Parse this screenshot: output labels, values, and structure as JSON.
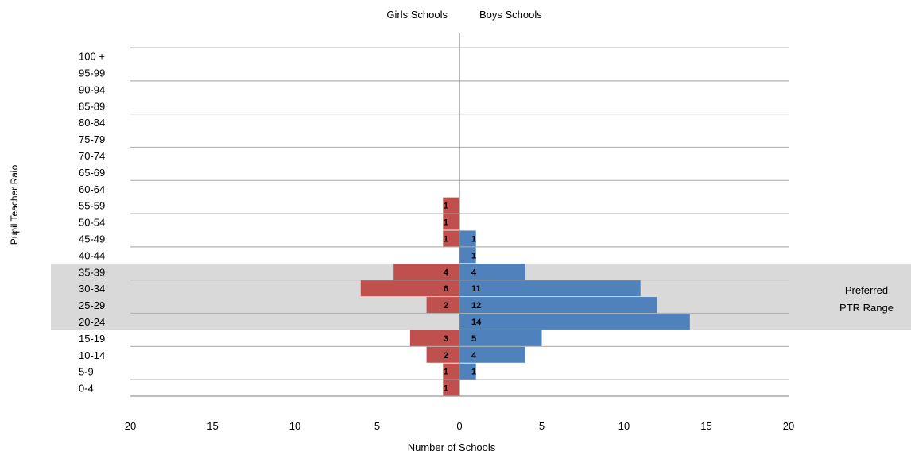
{
  "chart_data": {
    "type": "bar",
    "orientation": "horizontal-population-pyramid",
    "categories": [
      "0-4",
      "5-9",
      "10-14",
      "15-19",
      "20-24",
      "25-29",
      "30-34",
      "35-39",
      "40-44",
      "45-49",
      "50-54",
      "55-59",
      "60-64",
      "65-69",
      "70-74",
      "75-79",
      "80-84",
      "85-89",
      "90-94",
      "95-99",
      "100 +"
    ],
    "series": [
      {
        "name": "Girls Schools",
        "color": "#c0504d",
        "values": [
          1,
          1,
          2,
          3,
          0,
          2,
          6,
          4,
          0,
          1,
          1,
          1,
          0,
          0,
          0,
          0,
          0,
          0,
          0,
          0,
          0
        ]
      },
      {
        "name": "Boys Schools",
        "color": "#4f81bd",
        "values": [
          0,
          1,
          4,
          5,
          14,
          12,
          11,
          4,
          1,
          1,
          0,
          0,
          0,
          0,
          0,
          0,
          0,
          0,
          0,
          0,
          0
        ]
      }
    ],
    "xlabel": "Number of Schools",
    "ylabel": "Pupil Teacher Raio",
    "xlim": [
      -20,
      20
    ],
    "xticks": [
      "20",
      "15",
      "10",
      "5",
      "0",
      "5",
      "10",
      "15",
      "20"
    ],
    "highlight": {
      "from": "20-24",
      "to": "35-39",
      "label": [
        "Preferred",
        "PTR Range"
      ],
      "color": "#d9d9d9"
    },
    "grid": true
  }
}
